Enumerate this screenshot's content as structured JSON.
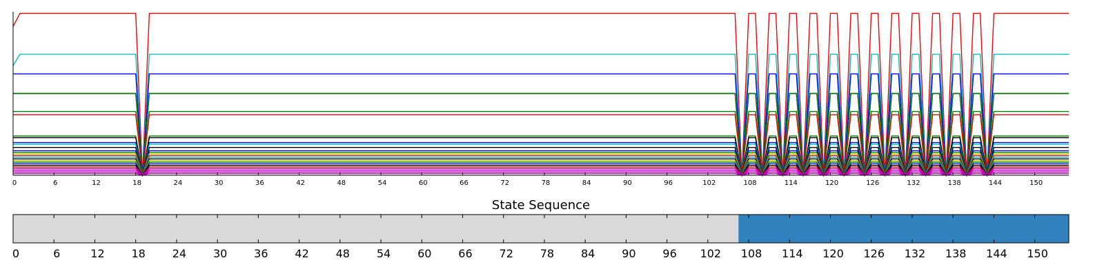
{
  "chart_data": [
    {
      "type": "line",
      "title": "",
      "xlabel": "",
      "ylabel": "",
      "xlim": [
        0,
        155
      ],
      "ylim": [
        0,
        100
      ],
      "x_ticks": [
        0,
        6,
        12,
        18,
        24,
        30,
        36,
        42,
        48,
        54,
        60,
        66,
        72,
        78,
        84,
        90,
        96,
        102,
        108,
        114,
        120,
        126,
        132,
        138,
        144,
        150
      ],
      "x_tick_labels": [
        "0",
        "6",
        "12",
        "18",
        "24",
        "30",
        "36",
        "42",
        "48",
        "54",
        "60",
        "66",
        "72",
        "78",
        "84",
        "90",
        "96",
        "102",
        "108",
        "114",
        "120",
        "126",
        "132",
        "138",
        "144",
        "150"
      ],
      "y_ticks_visible": false,
      "grid": false,
      "legend": "none",
      "dips_to_zero_at": [
        19,
        107,
        110,
        113,
        116,
        119,
        122,
        125,
        128,
        131,
        134,
        137,
        140,
        143
      ],
      "series": [
        {
          "color": "#ff0000",
          "level": 99,
          "start": 91
        },
        {
          "color": "#00bfbf",
          "level": 74,
          "start": 67
        },
        {
          "color": "#0000ff",
          "level": 62
        },
        {
          "color": "#000000",
          "level": 50
        },
        {
          "color": "#008000",
          "level": 50
        },
        {
          "color": "#008000",
          "level": 39
        },
        {
          "color": "#ff0000",
          "level": 37
        },
        {
          "color": "#008000",
          "level": 24
        },
        {
          "color": "#000000",
          "level": 23
        },
        {
          "color": "#0000ff",
          "level": 20
        },
        {
          "color": "#00bfbf",
          "level": 19
        },
        {
          "color": "#000000",
          "level": 17
        },
        {
          "color": "#0000ff",
          "level": 15
        },
        {
          "color": "#008000",
          "level": 14
        },
        {
          "color": "#bfbf00",
          "level": 13
        },
        {
          "color": "#ff0000",
          "level": 12
        },
        {
          "color": "#00bfbf",
          "level": 11
        },
        {
          "color": "#000000",
          "level": 10
        },
        {
          "color": "#bfbf00",
          "level": 9
        },
        {
          "color": "#008000",
          "level": 8
        },
        {
          "color": "#0000ff",
          "level": 7
        },
        {
          "color": "#000000",
          "level": 6
        },
        {
          "color": "#ff0000",
          "level": 5
        },
        {
          "color": "#bf00bf",
          "level": 4
        },
        {
          "color": "#bf00bf",
          "level": 3
        },
        {
          "color": "#bf00bf",
          "level": 2
        },
        {
          "color": "#bf00bf",
          "level": 1
        }
      ]
    },
    {
      "type": "state-sequence",
      "title": "State Sequence",
      "xlim": [
        0,
        155
      ],
      "x_ticks": [
        0,
        6,
        12,
        18,
        24,
        30,
        36,
        42,
        48,
        54,
        60,
        66,
        72,
        78,
        84,
        90,
        96,
        102,
        108,
        114,
        120,
        126,
        132,
        138,
        144,
        150
      ],
      "x_tick_labels": [
        "0",
        "6",
        "12",
        "18",
        "24",
        "30",
        "36",
        "42",
        "48",
        "54",
        "60",
        "66",
        "72",
        "78",
        "84",
        "90",
        "96",
        "102",
        "108",
        "114",
        "120",
        "126",
        "132",
        "138",
        "144",
        "150"
      ],
      "segments": [
        {
          "start": 0,
          "end": 106.5,
          "color": "#d9d9d9"
        },
        {
          "start": 106.5,
          "end": 155,
          "color": "#3182bd"
        }
      ]
    }
  ]
}
